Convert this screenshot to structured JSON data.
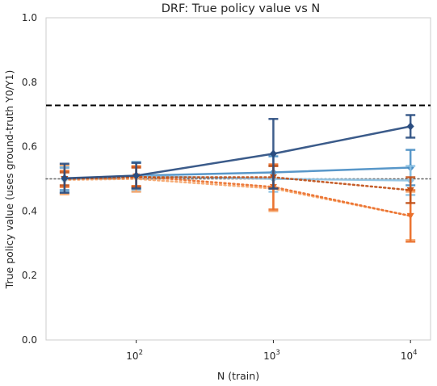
{
  "chart_data": {
    "type": "line",
    "title": "DRF: True policy value vs N",
    "xlabel": "N (train)",
    "ylabel": "True policy value (uses ground-truth Y0/Y1)",
    "x_scale": "log",
    "xlim": [
      22,
      14000
    ],
    "ylim": [
      0,
      1.0
    ],
    "yticks": [
      "0.0",
      "0.2",
      "0.4",
      "0.6",
      "0.8",
      "1.0"
    ],
    "xticks": [
      {
        "value": 100,
        "base": "10",
        "exp": "2"
      },
      {
        "value": 1000,
        "base": "10",
        "exp": "3"
      },
      {
        "value": 10000,
        "base": "10",
        "exp": "4"
      }
    ],
    "grid": false,
    "x": [
      30,
      100,
      1000,
      10000
    ],
    "reference_lines": [
      {
        "y": 0.728,
        "style": "dashed",
        "color": "#000000"
      },
      {
        "y": 0.5,
        "style": "dotted",
        "color": "#666666"
      }
    ],
    "series": [
      {
        "values": [
          0.5,
          0.51,
          0.52,
          0.535
        ],
        "err": [
          0.035,
          0.04,
          0.05,
          0.055
        ],
        "color": "#4a8ec4",
        "linestyle": "solid",
        "marker": "diamond"
      },
      {
        "values": [
          0.498,
          0.508,
          0.5,
          0.495
        ],
        "err": [
          0.04,
          0.045,
          0.04,
          0.045
        ],
        "color": "#8dc2e3",
        "linestyle": "solid",
        "marker": "diamond"
      },
      {
        "values": [
          0.497,
          0.5,
          0.47,
          0.385
        ],
        "err": [
          0.045,
          0.04,
          0.07,
          0.075
        ],
        "color": "#f5a469",
        "linestyle": "dotted",
        "marker": "triangle-down"
      },
      {
        "values": [
          0.5,
          0.508,
          0.475,
          0.385
        ],
        "err": [
          0.025,
          0.03,
          0.07,
          0.08
        ],
        "color": "#ea6f2b",
        "linestyle": "dotted",
        "marker": "triangle-down"
      },
      {
        "values": [
          0.5,
          0.505,
          0.505,
          0.465
        ],
        "err": [
          0.02,
          0.03,
          0.035,
          0.04
        ],
        "color": "#c04f17",
        "linestyle": "dotted",
        "marker": "triangle-down"
      },
      {
        "values": [
          0.502,
          0.51,
          0.578,
          0.663
        ],
        "err": [
          0.045,
          0.04,
          0.108,
          0.035
        ],
        "color": "#2a4d80",
        "linestyle": "solid",
        "marker": "diamond"
      }
    ]
  }
}
